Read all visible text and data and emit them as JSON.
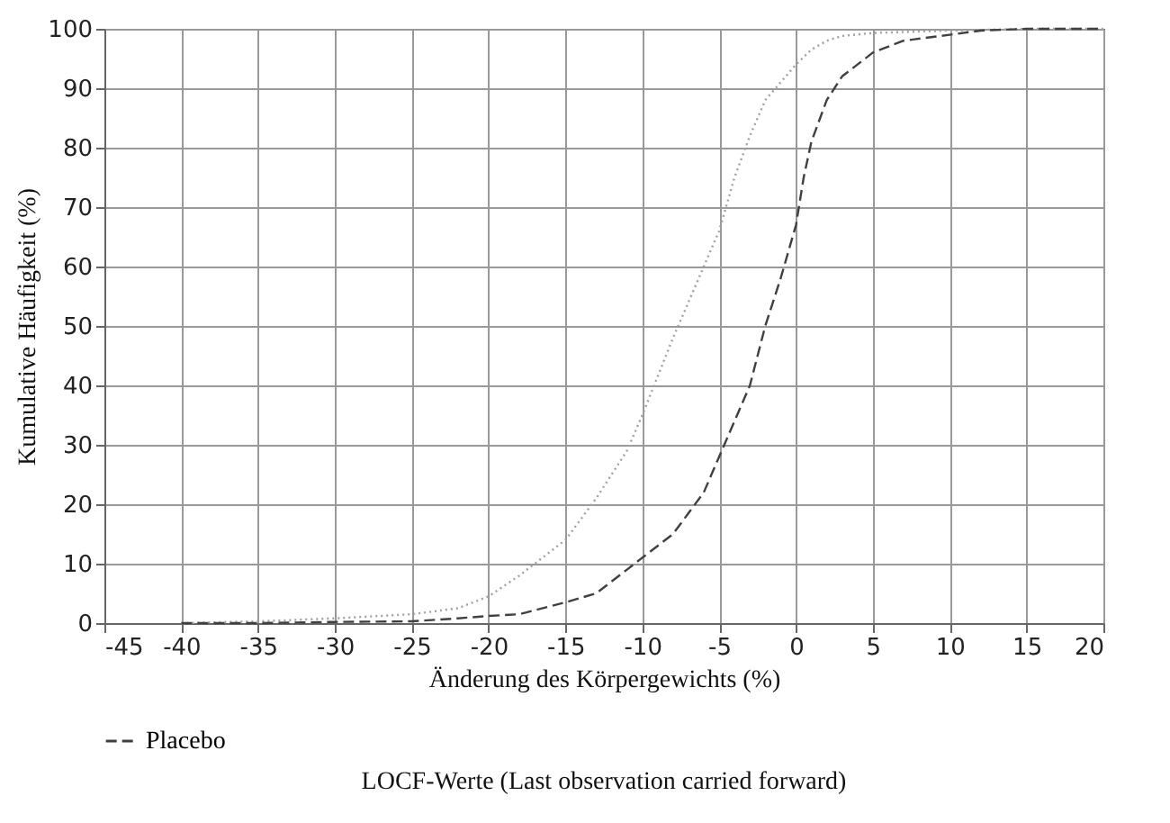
{
  "chart_data": {
    "type": "line",
    "xlabel": "Änderung des Körpergewichts (%)",
    "ylabel": "Kumulative Häufigkeit (%)",
    "annotations": [
      "LOCF-Werte (Last observation carried forward)"
    ],
    "xlim": [
      -45,
      20
    ],
    "xticks": [
      -45,
      -40,
      -35,
      -30,
      -25,
      -20,
      -15,
      -10,
      -5,
      0,
      5,
      10,
      15,
      20
    ],
    "ylim": [
      0,
      100
    ],
    "yticks": [
      0,
      10,
      20,
      30,
      40,
      50,
      60,
      70,
      80,
      90,
      100
    ],
    "grid": true,
    "legend": "bottom",
    "series": [
      {
        "color": "#a0a0a0",
        "line_style": "dotted",
        "x": [
          -40,
          -35,
          -30,
          -25,
          -22,
          -20,
          -18,
          -15,
          -13,
          -11,
          -10,
          -8,
          -6,
          -5,
          -4,
          -3,
          -2,
          -1,
          0,
          1,
          2,
          3,
          5,
          10,
          15,
          20
        ],
        "values": [
          0,
          0.3,
          0.8,
          1.5,
          2.5,
          4.5,
          8,
          14,
          21,
          29,
          35,
          48,
          60,
          66,
          75,
          82,
          88,
          91,
          94,
          96.5,
          98,
          98.8,
          99.3,
          99.7,
          100,
          100
        ]
      },
      {
        "name": "Placebo",
        "color": "#404040",
        "line_style": "dashed",
        "x": [
          -40,
          -35,
          -30,
          -25,
          -22,
          -20,
          -18,
          -15,
          -13,
          -11,
          -10,
          -8,
          -6,
          -5,
          -4,
          -3,
          -2,
          -1,
          0,
          0.5,
          1,
          2,
          3,
          4,
          5,
          7,
          10,
          12,
          15,
          20
        ],
        "values": [
          0,
          0,
          0.2,
          0.3,
          0.8,
          1.2,
          1.5,
          3.5,
          5,
          9,
          11,
          15,
          22,
          28,
          34,
          40,
          50,
          58,
          67,
          75,
          81,
          88,
          92,
          94,
          96,
          98,
          99,
          99.7,
          100,
          100
        ]
      }
    ]
  }
}
